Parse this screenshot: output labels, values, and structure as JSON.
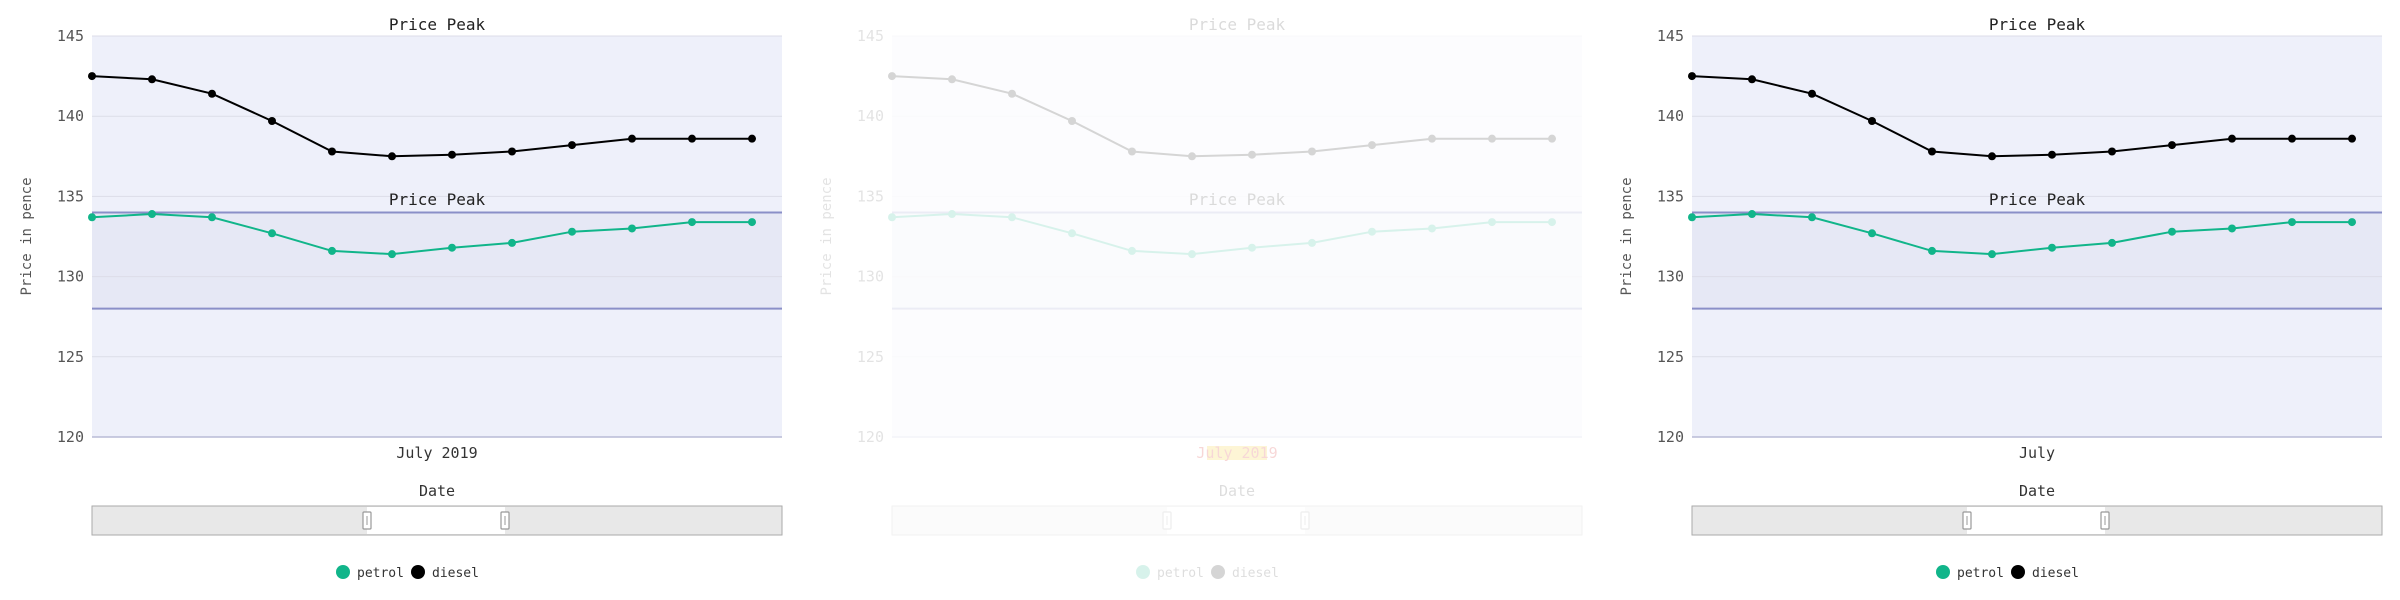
{
  "colors": {
    "petrol": "#11b58a",
    "diesel": "#000000",
    "plot_bg": "#eef0fa",
    "band_fill": "#e6e8f5",
    "band_line": "#8a8fc8",
    "grid": "#dcdde8",
    "axis_text": "#555555"
  },
  "chart_data": [
    {
      "type": "line",
      "state": "normal",
      "title": "Price Peak",
      "band_title": "Price Peak",
      "xlabel": "Date",
      "ylabel": "Price in pence",
      "x_tick_label": "July 2019",
      "ylim": [
        120,
        145
      ],
      "yticks": [
        "120",
        "125",
        "130",
        "135",
        "140",
        "145"
      ],
      "band": [
        128,
        134
      ],
      "x": [
        1,
        2,
        3,
        4,
        5,
        6,
        7,
        8,
        9,
        10,
        11,
        12
      ],
      "series": [
        {
          "name": "petrol",
          "values": [
            133.7,
            133.9,
            133.7,
            132.7,
            131.6,
            131.4,
            131.8,
            132.1,
            132.8,
            133.0,
            133.4,
            133.4
          ]
        },
        {
          "name": "diesel",
          "values": [
            142.5,
            142.3,
            141.4,
            139.7,
            137.8,
            137.5,
            137.6,
            137.8,
            138.2,
            138.6,
            138.6,
            138.6
          ]
        }
      ],
      "legend": [
        "petrol",
        "diesel"
      ]
    },
    {
      "type": "line",
      "state": "faded",
      "title": "Price Peak",
      "band_title": "Price Peak",
      "xlabel": "Date",
      "ylabel": "Price in pence",
      "x_tick_label": "July 2019",
      "ylim": [
        120,
        145
      ],
      "yticks": [
        "120",
        "125",
        "130",
        "135",
        "140",
        "145"
      ],
      "band": [
        128,
        134
      ],
      "x": [
        1,
        2,
        3,
        4,
        5,
        6,
        7,
        8,
        9,
        10,
        11,
        12
      ],
      "series": [
        {
          "name": "petrol",
          "values": [
            133.7,
            133.9,
            133.7,
            132.7,
            131.6,
            131.4,
            131.8,
            132.1,
            132.8,
            133.0,
            133.4,
            133.4
          ]
        },
        {
          "name": "diesel",
          "values": [
            142.5,
            142.3,
            141.4,
            139.7,
            137.8,
            137.5,
            137.6,
            137.8,
            138.2,
            138.6,
            138.6,
            138.6
          ]
        }
      ],
      "legend": [
        "petrol",
        "diesel"
      ]
    },
    {
      "type": "line",
      "state": "normal",
      "title": "Price Peak",
      "band_title": "Price Peak",
      "xlabel": "Date",
      "ylabel": "Price in pence",
      "x_tick_label": "July",
      "ylim": [
        120,
        145
      ],
      "yticks": [
        "120",
        "125",
        "130",
        "135",
        "140",
        "145"
      ],
      "band": [
        128,
        134
      ],
      "x": [
        1,
        2,
        3,
        4,
        5,
        6,
        7,
        8,
        9,
        10,
        11,
        12
      ],
      "series": [
        {
          "name": "petrol",
          "values": [
            133.7,
            133.9,
            133.7,
            132.7,
            131.6,
            131.4,
            131.8,
            132.1,
            132.8,
            133.0,
            133.4,
            133.4
          ]
        },
        {
          "name": "diesel",
          "values": [
            142.5,
            142.3,
            141.4,
            139.7,
            137.8,
            137.5,
            137.6,
            137.8,
            138.2,
            138.6,
            138.6,
            138.6
          ]
        }
      ],
      "legend": [
        "petrol",
        "diesel"
      ]
    }
  ]
}
